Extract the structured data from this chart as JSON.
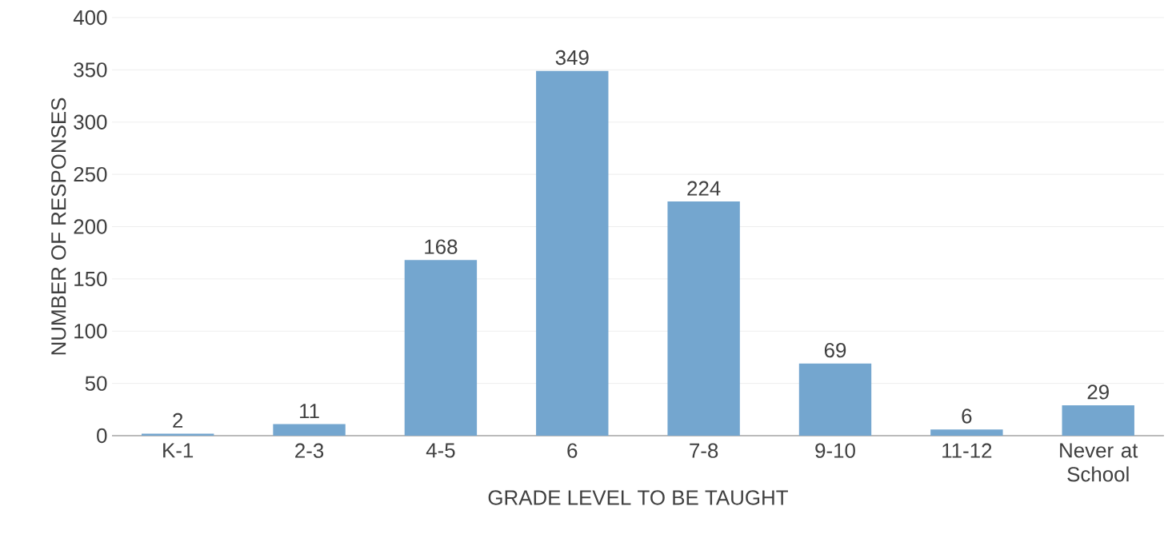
{
  "chart_data": {
    "type": "bar",
    "xlabel": "GRADE LEVEL TO BE TAUGHT",
    "ylabel": "NUMBER OF RESPONSES",
    "categories": [
      "K-1",
      "2-3",
      "4-5",
      "6",
      "7-8",
      "9-10",
      "11-12",
      "Never at School"
    ],
    "values": [
      2,
      11,
      168,
      349,
      224,
      69,
      6,
      29
    ],
    "color": "#74a6cf",
    "ylim": [
      0,
      400
    ],
    "yticks": [
      0,
      50,
      100,
      150,
      200,
      250,
      300,
      350,
      400
    ],
    "grid": "y",
    "data_labels": true
  }
}
